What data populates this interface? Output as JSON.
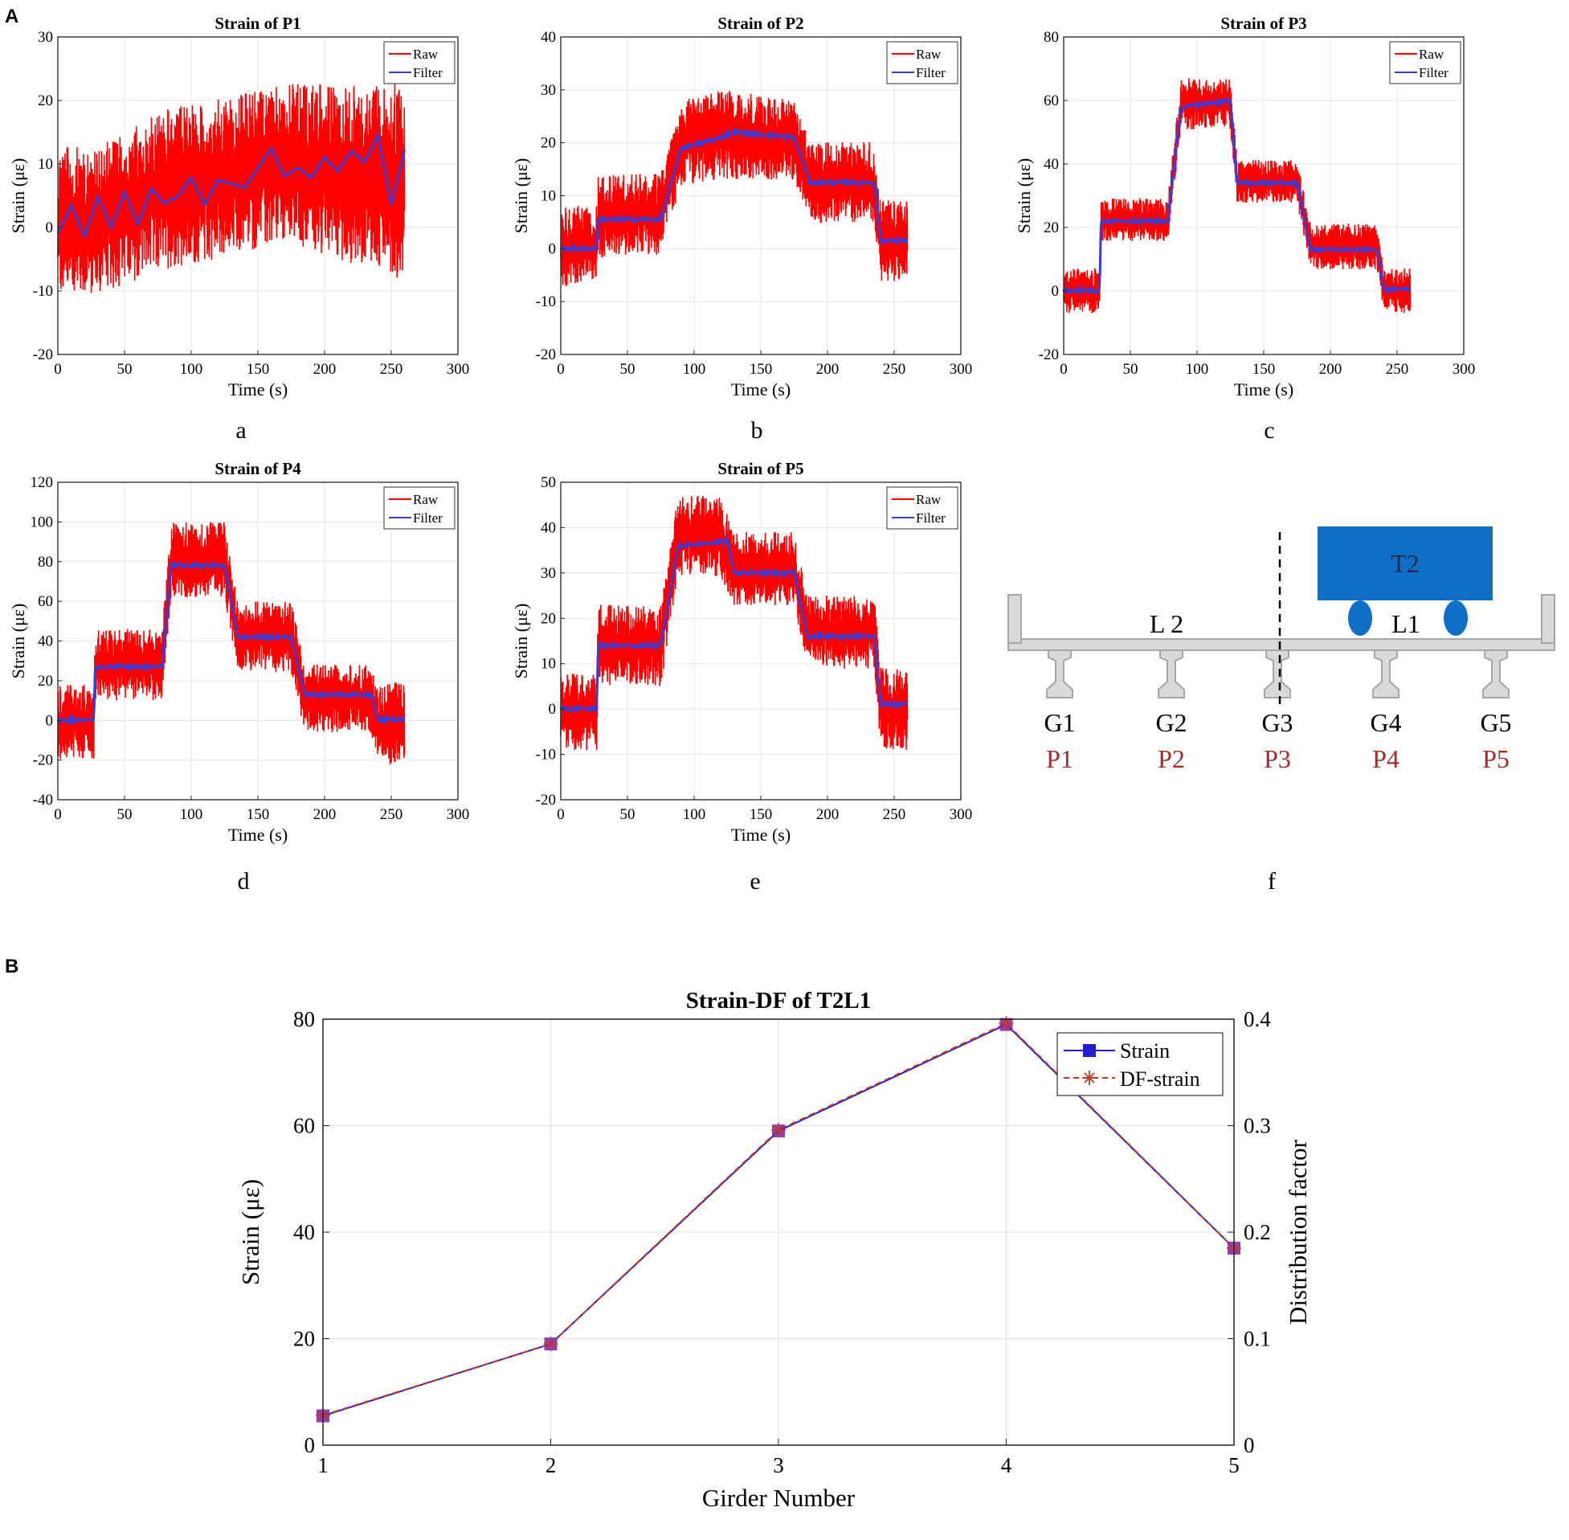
{
  "panel_labels": {
    "A": "A",
    "B": "B"
  },
  "sublabels": {
    "a": "a",
    "b": "b",
    "c": "c",
    "d": "d",
    "e": "e",
    "f": "f"
  },
  "colors": {
    "raw": "#ff0000",
    "filter": "#3b3bd6",
    "strain": "#1f1fcf",
    "df": "#c0392b",
    "beam": "#d9d9d9",
    "beam_stroke": "#a6a6a6",
    "truck": "#0f6fc6",
    "wheel": "#0f6fc6",
    "p_label": "#a52a2a"
  },
  "legend_small": {
    "raw": "Raw",
    "filter": "Filter"
  },
  "time_axis": {
    "xlabel": "Time (s)",
    "xlim": [
      0,
      300
    ],
    "xticks": [
      "0",
      "50",
      "100",
      "150",
      "200",
      "250",
      "300"
    ]
  },
  "chart_data": [
    {
      "id": "P1",
      "type": "line",
      "title": "Strain of P1",
      "xlabel": "Time (s)",
      "ylabel": "Strain (με)",
      "ylim": [
        -20,
        30
      ],
      "yticks": [
        "-20",
        "-10",
        "0",
        "10",
        "20",
        "30"
      ],
      "series": [
        {
          "name": "Raw",
          "band": [
            [
              0,
              -12,
              14
            ],
            [
              30,
              -12,
              14
            ],
            [
              80,
              -8,
              20
            ],
            [
              130,
              -6,
              22
            ],
            [
              170,
              -4,
              24
            ],
            [
              230,
              -8,
              24
            ],
            [
              260,
              -10,
              25
            ]
          ]
        },
        {
          "name": "Filter",
          "x": [
            0,
            10,
            20,
            30,
            40,
            50,
            60,
            70,
            80,
            90,
            100,
            110,
            120,
            130,
            140,
            150,
            160,
            170,
            180,
            190,
            200,
            210,
            220,
            230,
            240,
            250,
            260
          ],
          "y": [
            0,
            3,
            -2,
            4,
            1,
            5,
            0,
            6,
            3,
            5,
            7,
            4,
            8,
            6,
            7,
            9,
            13,
            8,
            10,
            7,
            11,
            9,
            12,
            10,
            14,
            4,
            12
          ]
        }
      ]
    },
    {
      "id": "P2",
      "type": "line",
      "title": "Strain of P2",
      "xlabel": "Time (s)",
      "ylabel": "Strain (με)",
      "ylim": [
        -20,
        40
      ],
      "yticks": [
        "-20",
        "-10",
        "0",
        "10",
        "20",
        "30",
        "40"
      ],
      "series": [
        {
          "name": "Raw",
          "band": [
            [
              0,
              -8,
              9
            ],
            [
              27,
              -8,
              9
            ],
            [
              28,
              -3,
              15
            ],
            [
              75,
              -2,
              15
            ],
            [
              90,
              11,
              29
            ],
            [
              120,
              12,
              31
            ],
            [
              175,
              12,
              29
            ],
            [
              187,
              4,
              21
            ],
            [
              235,
              4,
              21
            ],
            [
              240,
              -7,
              10
            ],
            [
              260,
              -7,
              10
            ]
          ]
        },
        {
          "name": "Filter",
          "steps": [
            [
              0,
              0
            ],
            [
              27,
              0
            ],
            [
              28,
              5.5
            ],
            [
              75,
              5.5
            ],
            [
              90,
              19
            ],
            [
              120,
              21
            ],
            [
              130,
              22
            ],
            [
              175,
              21
            ],
            [
              187,
              12.5
            ],
            [
              235,
              12.5
            ],
            [
              240,
              1.5
            ],
            [
              260,
              1.5
            ]
          ]
        }
      ]
    },
    {
      "id": "P3",
      "type": "line",
      "title": "Strain of P3",
      "xlabel": "Time (s)",
      "ylabel": "Strain (με)",
      "ylim": [
        -20,
        80
      ],
      "yticks": [
        "-20",
        "0",
        "20",
        "40",
        "60",
        "80"
      ],
      "series": [
        {
          "name": "Raw",
          "band": [
            [
              0,
              -8,
              8
            ],
            [
              27,
              -8,
              8
            ],
            [
              28,
              15,
              30
            ],
            [
              78,
              15,
              30
            ],
            [
              88,
              50,
              68
            ],
            [
              125,
              50,
              68
            ],
            [
              130,
              27,
              42
            ],
            [
              175,
              27,
              42
            ],
            [
              185,
              6,
              22
            ],
            [
              235,
              6,
              22
            ],
            [
              240,
              -8,
              8
            ],
            [
              260,
              -8,
              8
            ]
          ]
        },
        {
          "name": "Filter",
          "steps": [
            [
              0,
              0
            ],
            [
              27,
              0
            ],
            [
              28,
              22
            ],
            [
              78,
              22
            ],
            [
              88,
              58
            ],
            [
              125,
              60
            ],
            [
              130,
              34
            ],
            [
              175,
              34
            ],
            [
              185,
              13
            ],
            [
              235,
              13
            ],
            [
              240,
              0.5
            ],
            [
              260,
              0.5
            ]
          ]
        }
      ]
    },
    {
      "id": "P4",
      "type": "line",
      "title": "Strain of P4",
      "xlabel": "Time (s)",
      "ylabel": "Strain (με)",
      "ylim": [
        -40,
        120
      ],
      "yticks": [
        "-40",
        "-20",
        "0",
        "20",
        "40",
        "60",
        "80",
        "100",
        "120"
      ],
      "series": [
        {
          "name": "Raw",
          "band": [
            [
              0,
              -22,
              20
            ],
            [
              27,
              -22,
              20
            ],
            [
              28,
              8,
              48
            ],
            [
              78,
              8,
              48
            ],
            [
              85,
              60,
              102
            ],
            [
              125,
              60,
              102
            ],
            [
              135,
              22,
              62
            ],
            [
              175,
              22,
              62
            ],
            [
              185,
              -8,
              30
            ],
            [
              235,
              -8,
              30
            ],
            [
              240,
              -25,
              22
            ],
            [
              260,
              -25,
              22
            ]
          ]
        },
        {
          "name": "Filter",
          "steps": [
            [
              0,
              0
            ],
            [
              27,
              0
            ],
            [
              28,
              27
            ],
            [
              78,
              27
            ],
            [
              85,
              78
            ],
            [
              125,
              78
            ],
            [
              135,
              42
            ],
            [
              175,
              42
            ],
            [
              185,
              13
            ],
            [
              235,
              13
            ],
            [
              240,
              0.5
            ],
            [
              260,
              0.5
            ]
          ]
        }
      ]
    },
    {
      "id": "P5",
      "type": "line",
      "title": "Strain of P5",
      "xlabel": "Time (s)",
      "ylabel": "Strain (με)",
      "ylim": [
        -20,
        50
      ],
      "yticks": [
        "-20",
        "-10",
        "0",
        "10",
        "20",
        "30",
        "40",
        "50"
      ],
      "series": [
        {
          "name": "Raw",
          "band": [
            [
              0,
              -10,
              9
            ],
            [
              27,
              -10,
              9
            ],
            [
              28,
              4,
              24
            ],
            [
              75,
              4,
              24
            ],
            [
              88,
              28,
              48
            ],
            [
              120,
              28,
              48
            ],
            [
              130,
              22,
              40
            ],
            [
              175,
              22,
              40
            ],
            [
              185,
              8,
              26
            ],
            [
              235,
              8,
              26
            ],
            [
              240,
              -10,
              10
            ],
            [
              260,
              -10,
              10
            ]
          ]
        },
        {
          "name": "Filter",
          "steps": [
            [
              0,
              0
            ],
            [
              27,
              0
            ],
            [
              28,
              14
            ],
            [
              75,
              14
            ],
            [
              88,
              36
            ],
            [
              125,
              37
            ],
            [
              130,
              30
            ],
            [
              175,
              30
            ],
            [
              185,
              16
            ],
            [
              235,
              16
            ],
            [
              240,
              1
            ],
            [
              260,
              1
            ]
          ]
        }
      ]
    },
    {
      "id": "T2L1",
      "type": "line",
      "title": "Strain-DF of T2L1",
      "xlabel": "Girder Number",
      "ylabel": "Strain (με)",
      "ylabel_right": "Distribution factor",
      "x": [
        1,
        2,
        3,
        4,
        5
      ],
      "xlim": [
        1,
        5
      ],
      "ylim": [
        0,
        80
      ],
      "ylim_right": [
        0,
        0.4
      ],
      "xticks": [
        "1",
        "2",
        "3",
        "4",
        "5"
      ],
      "yticks": [
        "0",
        "20",
        "40",
        "60",
        "80"
      ],
      "yticks_right": [
        "0",
        "0.1",
        "0.2",
        "0.3",
        "0.4"
      ],
      "series": [
        {
          "name": "Strain",
          "values": [
            5.5,
            19,
            59,
            79,
            37
          ]
        },
        {
          "name": "DF-strain",
          "values": [
            0.028,
            0.095,
            0.296,
            0.396,
            0.185
          ]
        }
      ]
    }
  ],
  "diagram": {
    "truck_label": "T2",
    "lane_left": "L 2",
    "lane_right": "L1",
    "girders": [
      "G1",
      "G2",
      "G3",
      "G4",
      "G5"
    ],
    "points": [
      "P1",
      "P2",
      "P3",
      "P4",
      "P5"
    ]
  }
}
